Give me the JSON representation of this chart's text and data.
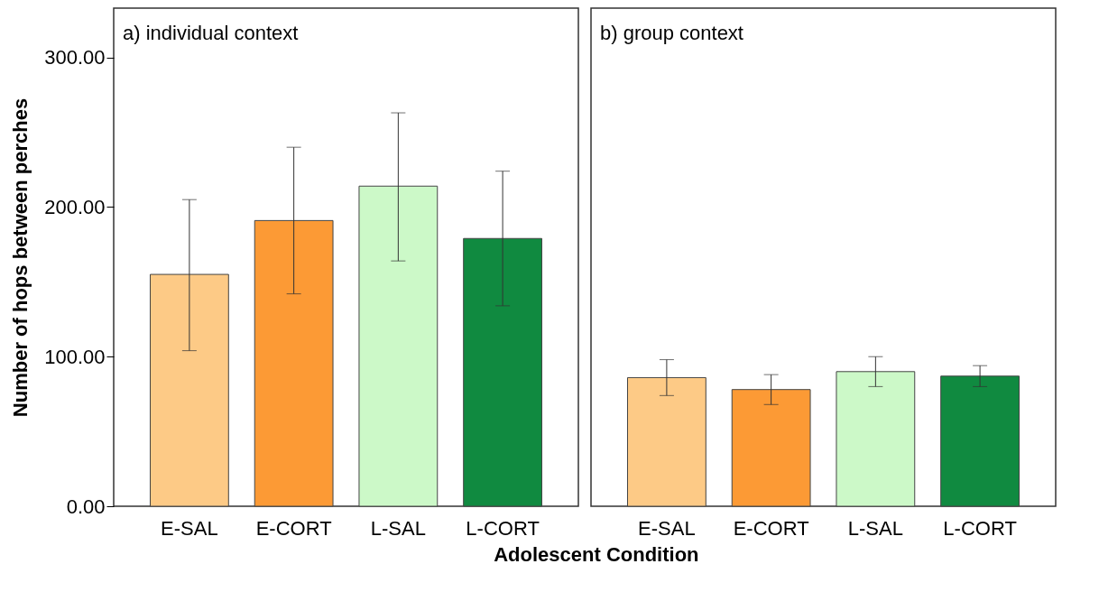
{
  "chart_data": [
    {
      "type": "bar",
      "title": "a) individual context",
      "xlabel": "Adolescent Condition",
      "ylabel": "Number of hops between perches",
      "categories": [
        "E-SAL",
        "E-CORT",
        "L-SAL",
        "L-CORT"
      ],
      "values": [
        155,
        191,
        214,
        179
      ],
      "colors": [
        "#fdca86",
        "#fc9a35",
        "#ccf9c8",
        "#108a40"
      ],
      "errors": [
        [
          104,
          205
        ],
        [
          142,
          240
        ],
        [
          164,
          263
        ],
        [
          134,
          224
        ]
      ],
      "ylim": [
        0,
        333
      ],
      "yticks": [
        {
          "value": 0,
          "label": "0.00"
        },
        {
          "value": 100,
          "label": "100.00"
        },
        {
          "value": 200,
          "label": "200.00"
        },
        {
          "value": 300,
          "label": "300.00"
        }
      ],
      "grid": false,
      "legend": false
    },
    {
      "type": "bar",
      "title": "b) group context",
      "categories": [
        "E-SAL",
        "E-CORT",
        "L-SAL",
        "L-CORT"
      ],
      "values": [
        86,
        78,
        90,
        87
      ],
      "colors": [
        "#fdca86",
        "#fc9a35",
        "#ccf9c8",
        "#108a40"
      ],
      "errors": [
        [
          74,
          98
        ],
        [
          68,
          88
        ],
        [
          80,
          100
        ],
        [
          80,
          94
        ]
      ],
      "ylim": [
        0,
        333
      ],
      "tick_labels": "x",
      "legend": false
    }
  ]
}
